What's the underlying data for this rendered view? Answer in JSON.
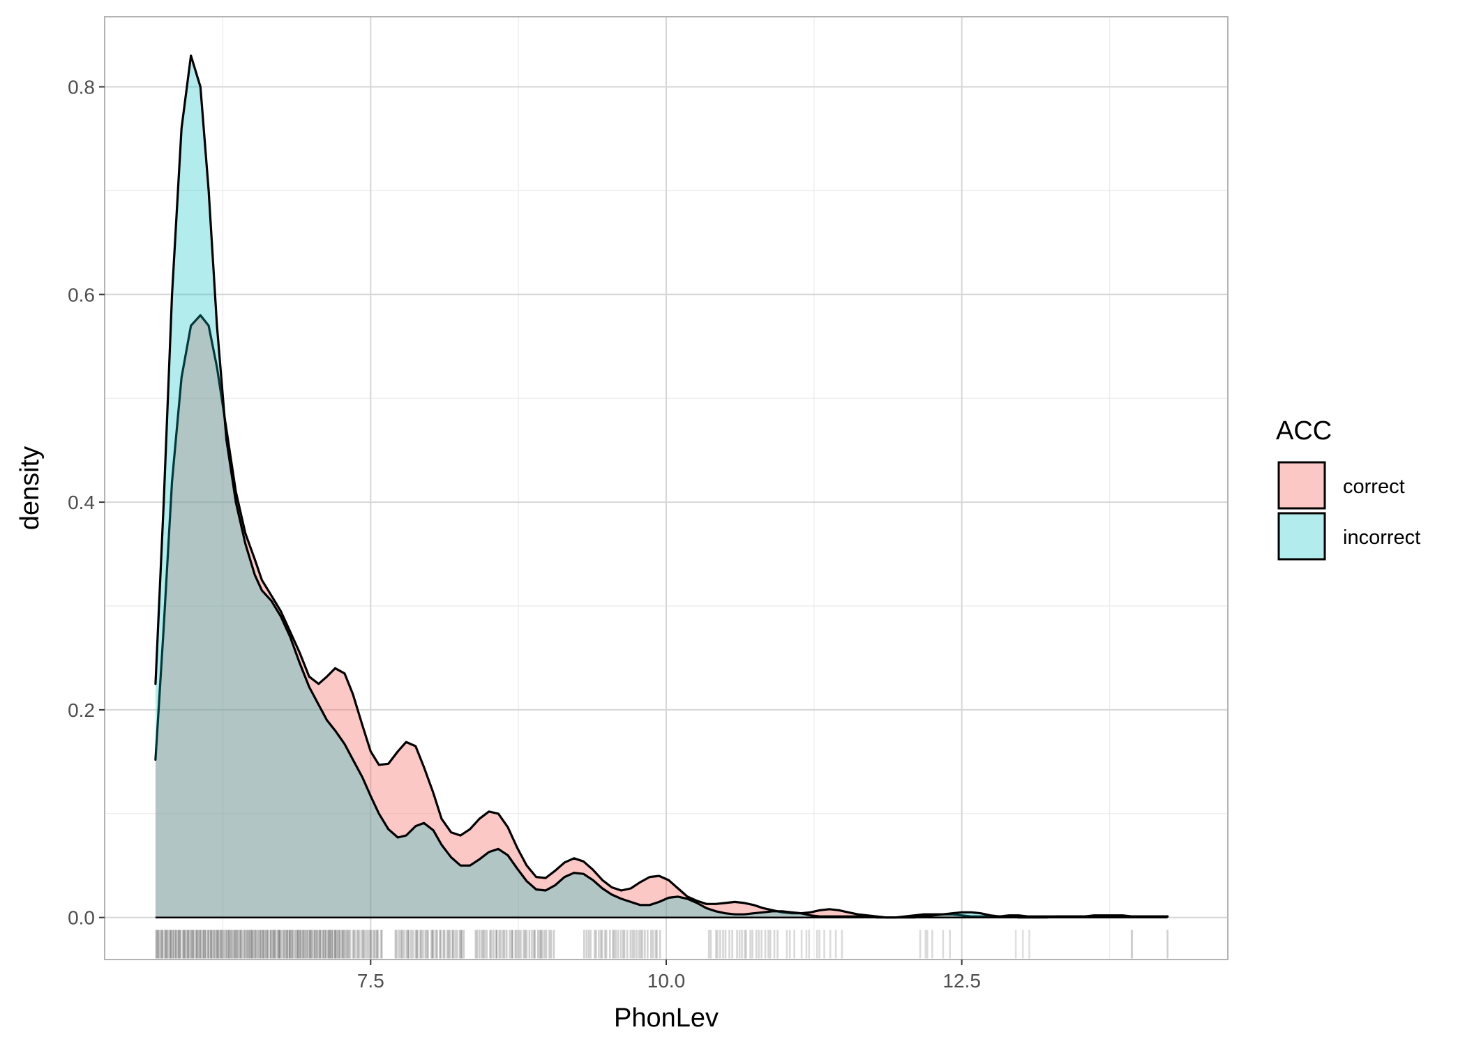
{
  "chart_data": {
    "type": "area",
    "xlabel": "PhonLev",
    "ylabel": "density",
    "xlim": [
      5.25,
      14.75
    ],
    "ylim": [
      -0.0405,
      0.8675
    ],
    "x_ticks": [
      7.5,
      10.0,
      12.5
    ],
    "x_tick_labels": [
      "7.5",
      "10.0",
      "12.5"
    ],
    "x_minor_ticks": [
      6.25,
      8.75,
      11.25,
      13.75
    ],
    "y_ticks": [
      0.0,
      0.2,
      0.4,
      0.6,
      0.8
    ],
    "y_tick_labels": [
      "0.0",
      "0.2",
      "0.4",
      "0.6",
      "0.8"
    ],
    "y_minor_ticks": [
      0.1,
      0.3,
      0.5,
      0.7
    ],
    "grid": true,
    "legend": {
      "title": "ACC",
      "position": "right",
      "entries": [
        "correct",
        "incorrect"
      ]
    },
    "series": [
      {
        "name": "correct",
        "color": "#F8766D",
        "fill_alpha": 0.4,
        "x": [
          5.68,
          5.75,
          5.82,
          5.9,
          5.98,
          6.06,
          6.13,
          6.2,
          6.28,
          6.36,
          6.44,
          6.52,
          6.58,
          6.66,
          6.74,
          6.82,
          6.9,
          6.98,
          7.06,
          7.13,
          7.2,
          7.28,
          7.35,
          7.43,
          7.5,
          7.57,
          7.65,
          7.73,
          7.8,
          7.88,
          7.95,
          8.03,
          8.1,
          8.18,
          8.26,
          8.34,
          8.42,
          8.5,
          8.58,
          8.66,
          8.74,
          8.82,
          8.9,
          8.98,
          9.06,
          9.14,
          9.22,
          9.3,
          9.38,
          9.46,
          9.54,
          9.62,
          9.7,
          9.78,
          9.86,
          9.94,
          10.02,
          10.1,
          10.18,
          10.26,
          10.34,
          10.42,
          10.5,
          10.58,
          10.66,
          10.74,
          10.82,
          10.9,
          10.98,
          11.06,
          11.14,
          11.22,
          11.3,
          11.38,
          11.46,
          11.54,
          11.62,
          11.7,
          11.78,
          11.86,
          11.94,
          12.02,
          12.1,
          12.18,
          12.26,
          12.34,
          12.42,
          12.5,
          12.58,
          12.66,
          12.74,
          12.82,
          12.9,
          12.98,
          13.06,
          13.14,
          13.22,
          13.3,
          13.38,
          13.46,
          13.54,
          13.62,
          13.7,
          13.78,
          13.86,
          13.94,
          14.02,
          14.1,
          14.18,
          14.24
        ],
        "y": [
          0.152,
          0.28,
          0.42,
          0.52,
          0.57,
          0.58,
          0.57,
          0.53,
          0.47,
          0.41,
          0.37,
          0.345,
          0.325,
          0.31,
          0.295,
          0.275,
          0.255,
          0.232,
          0.225,
          0.232,
          0.24,
          0.235,
          0.215,
          0.185,
          0.16,
          0.147,
          0.148,
          0.16,
          0.169,
          0.165,
          0.145,
          0.12,
          0.095,
          0.082,
          0.079,
          0.085,
          0.095,
          0.102,
          0.1,
          0.087,
          0.067,
          0.05,
          0.039,
          0.038,
          0.045,
          0.053,
          0.057,
          0.054,
          0.046,
          0.036,
          0.029,
          0.026,
          0.028,
          0.034,
          0.039,
          0.04,
          0.036,
          0.028,
          0.02,
          0.016,
          0.013,
          0.013,
          0.014,
          0.015,
          0.014,
          0.012,
          0.009,
          0.007,
          0.005,
          0.004,
          0.004,
          0.005,
          0.007,
          0.008,
          0.007,
          0.005,
          0.003,
          0.002,
          0.001,
          0.0,
          0.0,
          0.001,
          0.002,
          0.003,
          0.003,
          0.003,
          0.003,
          0.002,
          0.001,
          0.001,
          0.001,
          0.001,
          0.002,
          0.002,
          0.001,
          0.001,
          0.001,
          0.001,
          0.001,
          0.001,
          0.001,
          0.002,
          0.002,
          0.002,
          0.002,
          0.001,
          0.001,
          0.001,
          0.001,
          0.001
        ]
      },
      {
        "name": "incorrect",
        "color": "#00BFC4",
        "fill_alpha": 0.3,
        "x": [
          5.68,
          5.75,
          5.82,
          5.9,
          5.98,
          6.06,
          6.13,
          6.2,
          6.28,
          6.36,
          6.44,
          6.52,
          6.58,
          6.66,
          6.74,
          6.82,
          6.9,
          6.98,
          7.06,
          7.13,
          7.2,
          7.28,
          7.35,
          7.43,
          7.5,
          7.57,
          7.65,
          7.73,
          7.8,
          7.88,
          7.95,
          8.03,
          8.1,
          8.18,
          8.26,
          8.34,
          8.42,
          8.5,
          8.58,
          8.66,
          8.74,
          8.82,
          8.9,
          8.98,
          9.06,
          9.14,
          9.22,
          9.3,
          9.38,
          9.46,
          9.54,
          9.62,
          9.7,
          9.78,
          9.86,
          9.94,
          10.02,
          10.1,
          10.18,
          10.26,
          10.34,
          10.42,
          10.5,
          10.58,
          10.66,
          10.74,
          10.82,
          10.9,
          10.98,
          11.06,
          11.14,
          11.22,
          11.3,
          11.38,
          11.46,
          11.54,
          11.62,
          11.7,
          11.78,
          11.86,
          11.94,
          12.02,
          12.1,
          12.18,
          12.26,
          12.34,
          12.42,
          12.5,
          12.58,
          12.66,
          12.74,
          12.82,
          12.9,
          12.98,
          13.06,
          13.14,
          13.22,
          13.3,
          13.38,
          13.46,
          13.54,
          13.62,
          13.7,
          13.78,
          13.86,
          13.94,
          14.02,
          14.1,
          14.18,
          14.24
        ],
        "y": [
          0.225,
          0.4,
          0.6,
          0.76,
          0.83,
          0.8,
          0.7,
          0.57,
          0.46,
          0.4,
          0.36,
          0.33,
          0.315,
          0.305,
          0.29,
          0.27,
          0.245,
          0.222,
          0.205,
          0.19,
          0.18,
          0.167,
          0.152,
          0.135,
          0.117,
          0.1,
          0.085,
          0.077,
          0.079,
          0.088,
          0.091,
          0.084,
          0.07,
          0.058,
          0.05,
          0.05,
          0.056,
          0.063,
          0.066,
          0.06,
          0.047,
          0.035,
          0.027,
          0.026,
          0.031,
          0.039,
          0.043,
          0.042,
          0.036,
          0.028,
          0.022,
          0.018,
          0.015,
          0.012,
          0.012,
          0.015,
          0.019,
          0.02,
          0.018,
          0.014,
          0.009,
          0.006,
          0.004,
          0.003,
          0.003,
          0.004,
          0.005,
          0.006,
          0.006,
          0.005,
          0.004,
          0.002,
          0.001,
          0.001,
          0.001,
          0.001,
          0.001,
          0.001,
          0.0,
          0.0,
          0.0,
          0.0,
          0.0,
          0.001,
          0.002,
          0.003,
          0.004,
          0.005,
          0.005,
          0.004,
          0.002,
          0.001,
          0.001,
          0.0,
          0.0,
          0.0,
          0.0,
          0.001,
          0.001,
          0.001,
          0.001,
          0.001,
          0.001,
          0.001,
          0.001,
          0.001,
          0.001,
          0.001,
          0.001,
          0.001
        ]
      }
    ],
    "rug": [
      {
        "x0": 5.68,
        "x1": 7.3,
        "count": 160,
        "opacity": 0.22
      },
      {
        "x0": 7.3,
        "x1": 7.6,
        "count": 24,
        "opacity": 0.18
      },
      {
        "x0": 7.7,
        "x1": 8.3,
        "count": 40,
        "opacity": 0.2
      },
      {
        "x0": 8.38,
        "x1": 9.05,
        "count": 40,
        "opacity": 0.2
      },
      {
        "x0": 9.3,
        "x1": 9.95,
        "count": 34,
        "opacity": 0.18
      },
      {
        "x0": 10.35,
        "x1": 10.95,
        "count": 24,
        "opacity": 0.16
      },
      {
        "x0": 11.0,
        "x1": 11.5,
        "count": 12,
        "opacity": 0.14
      },
      {
        "x0": 12.1,
        "x1": 12.4,
        "count": 6,
        "opacity": 0.14
      },
      {
        "x0": 12.9,
        "x1": 13.1,
        "count": 3,
        "opacity": 0.12
      },
      {
        "x0": 13.9,
        "x1": 13.98,
        "count": 2,
        "opacity": 0.12
      },
      {
        "x0": 14.24,
        "x1": 14.24,
        "count": 1,
        "opacity": 0.18
      }
    ]
  }
}
